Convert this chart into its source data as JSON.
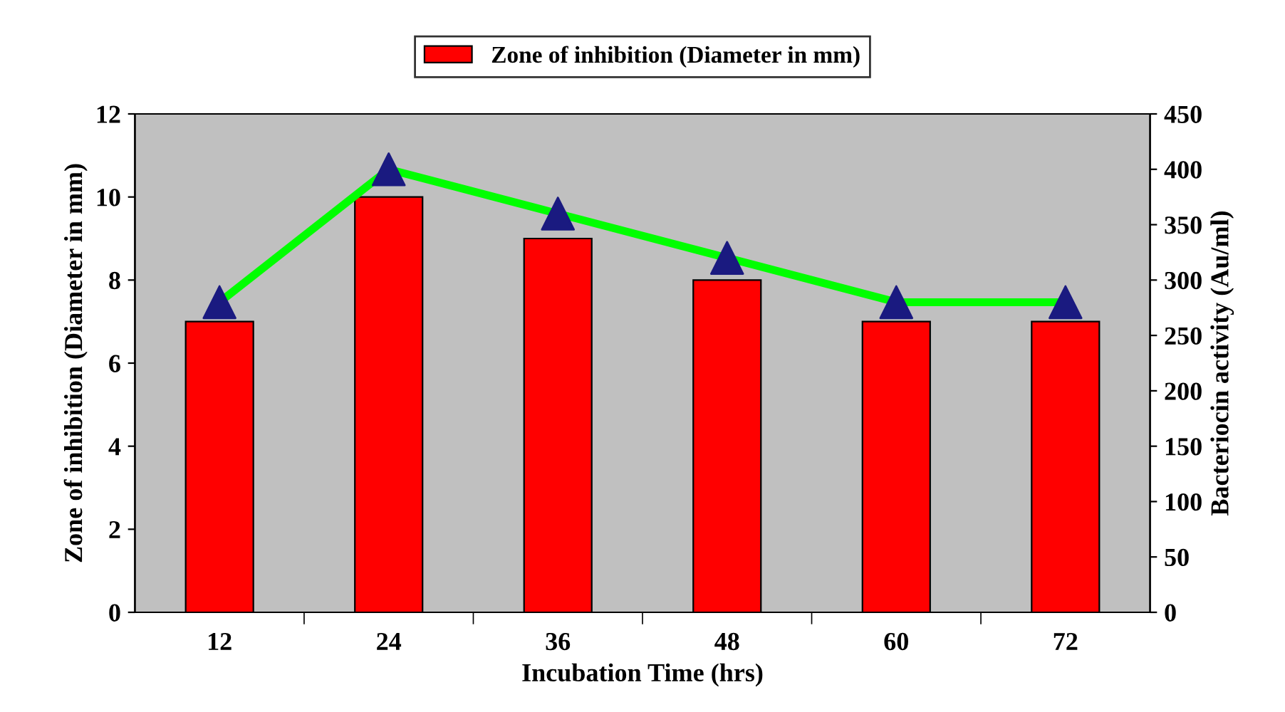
{
  "chart_data": {
    "type": "bar",
    "xlabel": "Incubation Time (hrs)",
    "ylabel": "Zone of inhibition (Diameter in mm)",
    "y2label": "Bacteriocin activity (Au/ml)",
    "categories": [
      "12",
      "24",
      "36",
      "48",
      "60",
      "72"
    ],
    "series": [
      {
        "name": "Zone of inhibition (Diameter in mm)",
        "color": "#ff0000",
        "values": [
          7,
          10,
          9,
          8,
          7,
          7
        ]
      },
      {
        "type": "line",
        "axis": "y2",
        "color": "#00ff00",
        "marker": "none",
        "values": [
          280,
          400,
          360,
          320,
          280,
          280
        ]
      },
      {
        "type": "scatter",
        "axis": "y2",
        "color": "#1a1a80",
        "marker": "triangle",
        "values": [
          280,
          400,
          360,
          320,
          280,
          280
        ]
      }
    ],
    "ylim": [
      0,
      12
    ],
    "yticks": [
      0,
      2,
      4,
      6,
      8,
      10,
      12
    ],
    "y2lim": [
      0,
      450
    ],
    "y2ticks": [
      0,
      50,
      100,
      150,
      200,
      250,
      300,
      350,
      400,
      450
    ],
    "grid": false,
    "legend": "top"
  }
}
